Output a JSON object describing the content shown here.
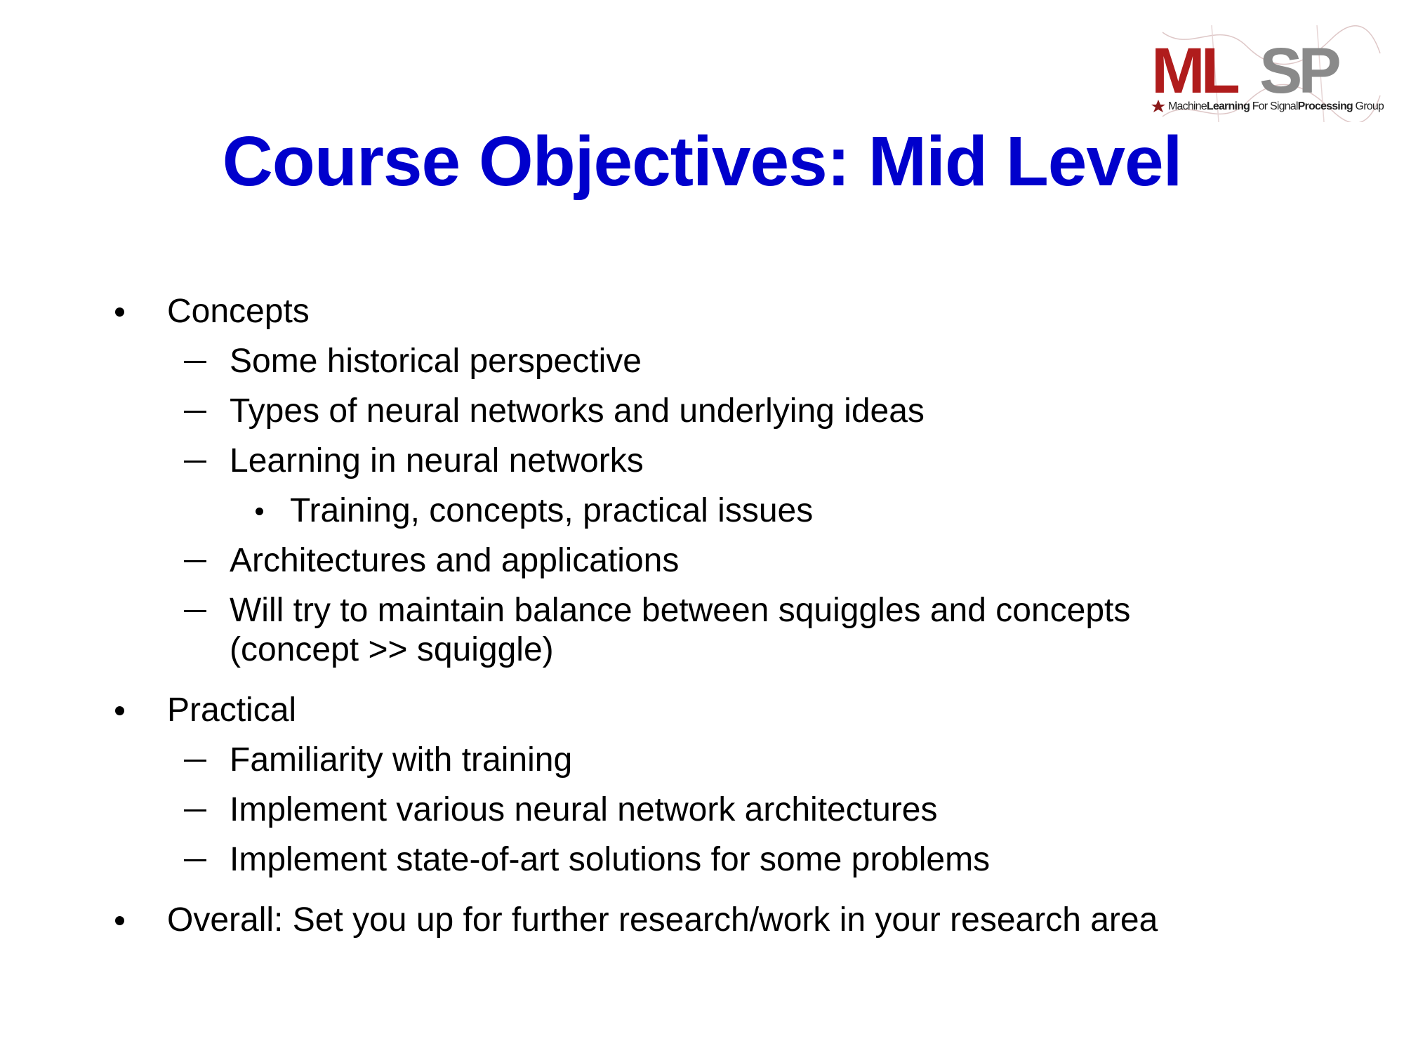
{
  "logo": {
    "letters": "MLSP",
    "tagline_1": "Machine",
    "tagline_2": "Learning",
    "tagline_3": " For Signal",
    "tagline_4": "Processing",
    "tagline_5": " Group",
    "colors": {
      "red": "#b01c1c",
      "gray": "#8a8a8a",
      "dark": "#222222"
    }
  },
  "title": "Course Objectives: Mid Level",
  "title_color": "#0000cc",
  "items": [
    {
      "level": 1,
      "text": "Concepts"
    },
    {
      "level": 2,
      "text": "Some historical perspective"
    },
    {
      "level": 2,
      "text": "Types of neural networks and underlying ideas"
    },
    {
      "level": 2,
      "text": "Learning in neural networks"
    },
    {
      "level": 3,
      "text": "Training, concepts, practical issues"
    },
    {
      "level": 2,
      "text": "Architectures and applications"
    },
    {
      "level": 2,
      "text": "Will try to maintain balance between squiggles and concepts"
    },
    {
      "level": 0,
      "text": "(concept >> squiggle)"
    },
    {
      "level": 1,
      "text": "Practical"
    },
    {
      "level": 2,
      "text": "Familiarity with training"
    },
    {
      "level": 2,
      "text": "Implement various neural network architectures"
    },
    {
      "level": 2,
      "text": "Implement state-of-art solutions for some problems"
    },
    {
      "level": 1,
      "text": "Overall: Set you up for further research/work in your research area"
    }
  ]
}
